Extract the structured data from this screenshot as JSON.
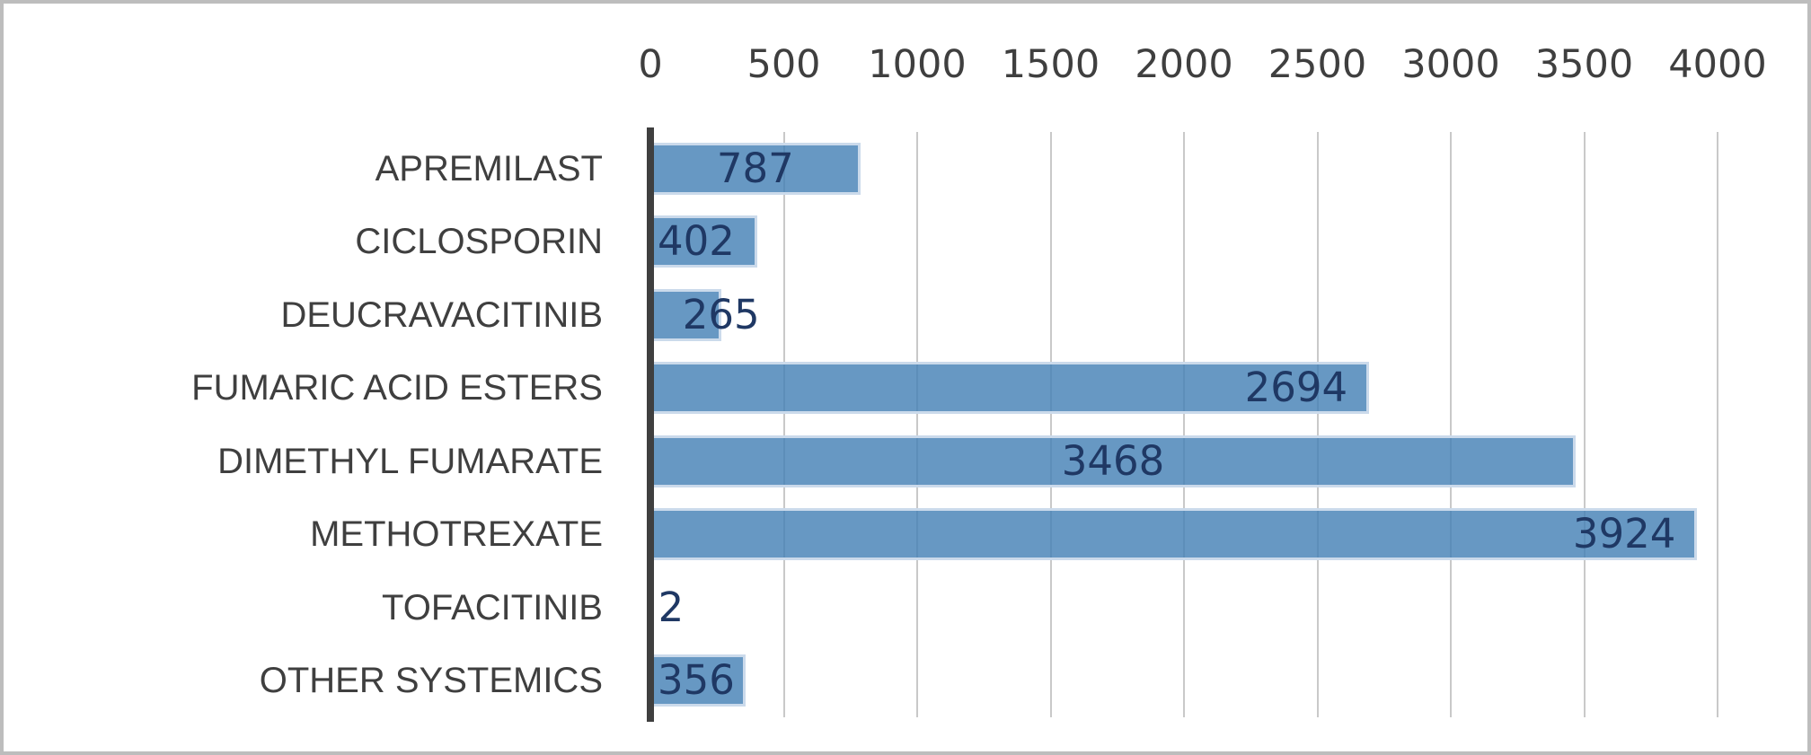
{
  "window": {
    "background_color": "#FFFFFF",
    "frame_border_color": "#BDBDBD"
  },
  "chart_data": {
    "type": "bar",
    "orientation": "horizontal",
    "title": "",
    "xlabel": "",
    "ylabel": "",
    "value_axis": {
      "position": "top",
      "min": 0,
      "max": 4000,
      "tick_step": 500,
      "tick_labels": [
        "0",
        "500",
        "1000",
        "1500",
        "2000",
        "2500",
        "3000",
        "3500",
        "4000"
      ]
    },
    "grid": "vertical-on",
    "legend": "none",
    "categories": [
      "APREMILAST",
      "CICLOSPORIN",
      "DEUCRAVACITINIB",
      "FUMARIC ACID ESTERS",
      "DIMETHYL FUMARATE",
      "METHOTREXATE",
      "TOFACITINIB",
      "OTHER SYSTEMICS"
    ],
    "values": [
      787,
      402,
      265,
      2694,
      3468,
      3924,
      2,
      356
    ],
    "items": [
      {
        "label": "APREMILAST",
        "value": 787,
        "value_label": "787",
        "label_pos": "center"
      },
      {
        "label": "CICLOSPORIN",
        "value": 402,
        "value_label": "402",
        "label_pos": "base"
      },
      {
        "label": "DEUCRAVACITINIB",
        "value": 265,
        "value_label": "265",
        "label_pos": "at-end"
      },
      {
        "label": "FUMARIC ACID ESTERS",
        "value": 2694,
        "value_label": "2694",
        "label_pos": "inside-end"
      },
      {
        "label": "DIMETHYL FUMARATE",
        "value": 3468,
        "value_label": "3468",
        "label_pos": "center"
      },
      {
        "label": "METHOTREXATE",
        "value": 3924,
        "value_label": "3924",
        "label_pos": "inside-end"
      },
      {
        "label": "TOFACITINIB",
        "value": 2,
        "value_label": "2",
        "label_pos": "outside"
      },
      {
        "label": "OTHER SYSTEMICS",
        "value": 356,
        "value_label": "356",
        "label_pos": "base"
      }
    ],
    "colors": {
      "bar_fill": "#6B9AC5",
      "bar_fill_rgba_base": "rgba(70,129,182,0.82)",
      "bar_border": "#CBDAEB",
      "gridline": "#C9C9C9",
      "axis_line": "#3F3F3F",
      "tick_label": "#3F3F3F",
      "category_label": "#3F3F3F",
      "data_label": "#1F3864"
    }
  }
}
